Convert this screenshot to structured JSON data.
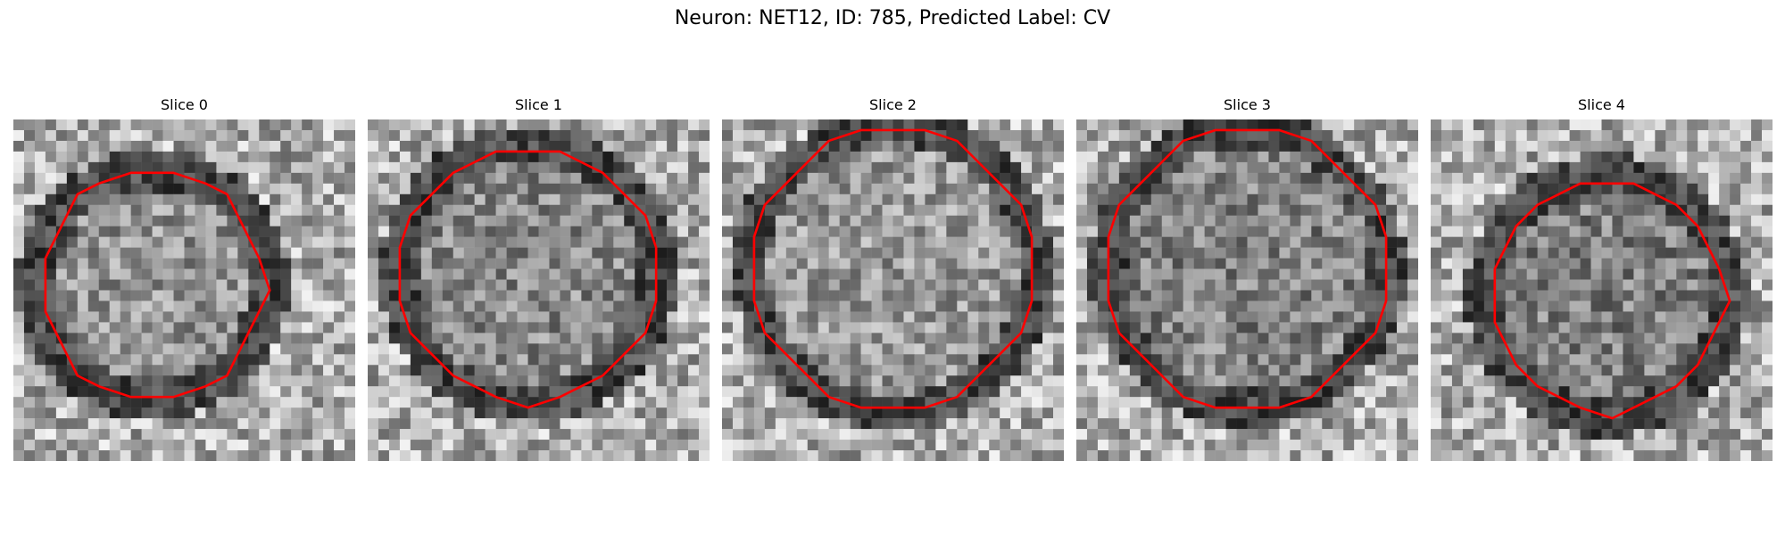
{
  "title": "Neuron: NET12, ID: 785, Predicted Label: CV",
  "panels": [
    {
      "label": "Slice 0"
    },
    {
      "label": "Slice 1"
    },
    {
      "label": "Slice 2"
    },
    {
      "label": "Slice 3"
    },
    {
      "label": "Slice 4"
    }
  ],
  "colors": {
    "contour": "#ff0000",
    "background": "#ffffff"
  }
}
